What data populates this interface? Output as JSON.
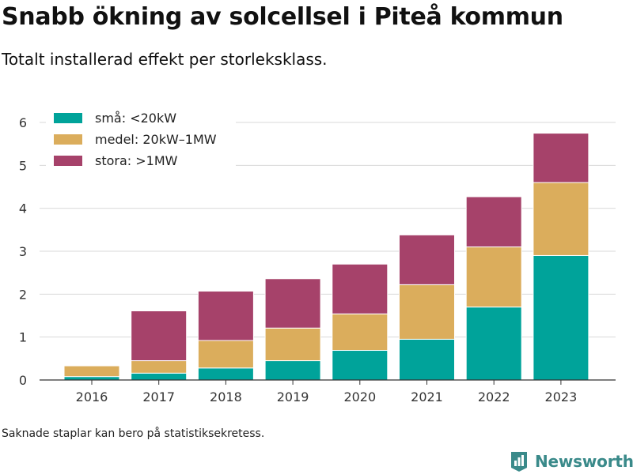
{
  "title": "Snabb ökning av solcellsel i Piteå kommun",
  "subtitle": "Totalt installerad effekt per storleksklass.",
  "footnote": "Saknade staplar kan bero på statistiksekretess.",
  "brand": {
    "name": "Newsworthy",
    "icon": "newsworthy-logo-icon"
  },
  "chart_data": {
    "type": "bar",
    "stacked": true,
    "title": "",
    "xlabel": "",
    "ylabel": "",
    "categories": [
      "2016",
      "2017",
      "2018",
      "2019",
      "2020",
      "2021",
      "2022",
      "2023"
    ],
    "series": [
      {
        "name": "små: <20kW",
        "color": "#00a39a",
        "values": [
          0.08,
          0.16,
          0.28,
          0.45,
          0.69,
          0.95,
          1.7,
          2.9
        ]
      },
      {
        "name": "medel: 20kW–1MW",
        "color": "#dbad5c",
        "values": [
          0.25,
          0.29,
          0.64,
          0.76,
          0.85,
          1.27,
          1.4,
          1.7
        ]
      },
      {
        "name": "stora: >1MW",
        "color": "#a6426a",
        "values": [
          0.0,
          1.16,
          1.15,
          1.15,
          1.16,
          1.16,
          1.17,
          1.15
        ]
      }
    ],
    "ylim": [
      0,
      6
    ],
    "yticks": [
      "0",
      "1",
      "2",
      "3",
      "4",
      "5",
      "6"
    ],
    "grid": true,
    "legend_position": "top-left"
  }
}
